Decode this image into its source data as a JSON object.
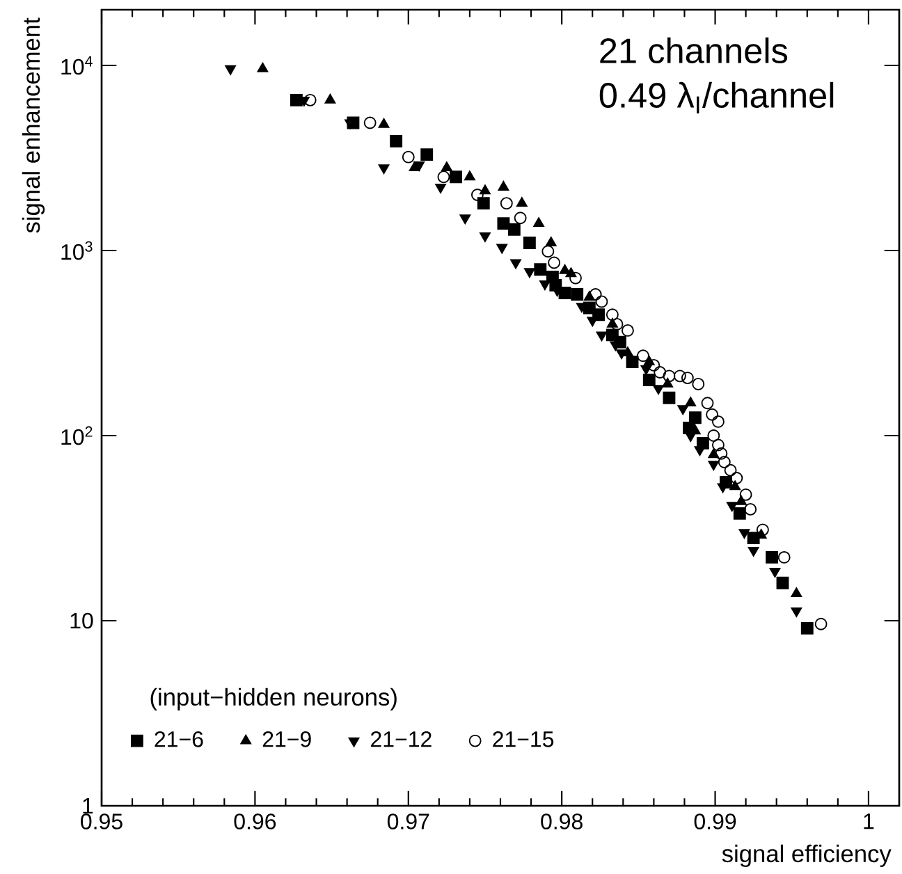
{
  "chart_data": {
    "type": "scatter",
    "xlabel": "signal efficiency",
    "ylabel": "signal enhancement",
    "legend_title": "(input−hidden neurons)",
    "legend": "bottom left",
    "log": "y",
    "annotations": [
      "21 channels",
      "0.49 λ$_{I}$/channel"
    ],
    "xlim": [
      0.95,
      1.002
    ],
    "ylim": [
      1,
      20000
    ],
    "xticks": [
      0.95,
      0.96,
      0.97,
      0.98,
      0.99,
      1
    ],
    "yticks": [
      1,
      10,
      {
        "value": 100,
        "label": "10$^{2}$"
      },
      {
        "value": 1000,
        "label": "10$^{3}$"
      },
      {
        "value": 10000,
        "label": "10$^{4}$"
      }
    ],
    "series": [
      {
        "name": "21−6",
        "color": "#000000",
        "marker": "square",
        "x": [
          0.9627,
          0.9664,
          0.9692,
          0.9712,
          0.9731,
          0.9749,
          0.9762,
          0.9769,
          0.9779,
          0.9786,
          0.9794,
          0.9796,
          0.9802,
          0.981,
          0.9818,
          0.9824,
          0.9833,
          0.9838,
          0.9846,
          0.9857,
          0.987,
          0.9883,
          0.9887,
          0.9892,
          0.9898,
          0.9907,
          0.9916,
          0.9925,
          0.9937,
          0.9944,
          0.996
        ],
        "values": [
          6500,
          4900,
          3900,
          3300,
          2500,
          1800,
          1400,
          1300,
          1100,
          790,
          720,
          650,
          590,
          580,
          490,
          450,
          350,
          320,
          250,
          200,
          160,
          110,
          125,
          91,
          null,
          56,
          38,
          28,
          22,
          16,
          9.1
        ]
      },
      {
        "name": "21−9",
        "color": "#000000",
        "marker": "triangle",
        "x": [
          0.9605,
          0.9649,
          0.9684,
          0.9704,
          0.9725,
          0.974,
          0.975,
          0.9762,
          0.9774,
          0.9785,
          0.9793,
          0.9802,
          0.9806,
          0.9818,
          0.9833,
          0.9843,
          0.9857,
          0.9869,
          0.9884,
          0.9887,
          0.9899,
          0.9913,
          0.9917,
          0.993,
          0.9953
        ],
        "values": [
          9600,
          6500,
          4800,
          2800,
          2800,
          2500,
          2100,
          2200,
          1800,
          1400,
          1100,
          780,
          750,
          560,
          400,
          280,
          250,
          190,
          150,
          106,
          79,
          53,
          44,
          29,
          14
        ]
      },
      {
        "name": "21−12",
        "color": "#000000",
        "marker": "triangle-down",
        "x": [
          0.9584,
          0.9632,
          0.9662,
          0.9684,
          0.9707,
          0.9721,
          0.9737,
          0.975,
          0.9761,
          0.977,
          0.9779,
          0.9789,
          0.9797,
          0.9813,
          0.982,
          0.9826,
          0.9835,
          0.9839,
          0.9855,
          0.9863,
          0.9879,
          0.9884,
          0.989,
          0.9899,
          0.9905,
          0.9911,
          0.9919,
          0.9925,
          0.9939,
          0.9953
        ],
        "values": [
          9600,
          6500,
          4900,
          2800,
          2900,
          2200,
          1500,
          1200,
          1040,
          860,
          770,
          660,
          610,
          500,
          420,
          350,
          310,
          280,
          230,
          180,
          140,
          100,
          84,
          70,
          53,
          42,
          30,
          24,
          18.5,
          11.3
        ]
      },
      {
        "name": "21−15",
        "color": "#000000",
        "marker": "circle",
        "x": [
          0.9636,
          0.9675,
          0.97,
          0.9723,
          0.9745,
          0.9764,
          0.9773,
          0.9791,
          0.9795,
          0.9809,
          0.9815,
          0.9822,
          0.9826,
          0.9833,
          0.9836,
          0.9843,
          0.9853,
          0.986,
          0.9864,
          0.987,
          0.9877,
          0.9882,
          0.9889,
          0.9895,
          0.9898,
          0.9902,
          0.9899,
          0.9902,
          0.9904,
          0.9906,
          0.991,
          0.9914,
          0.992,
          0.9923,
          0.9931,
          0.9945,
          0.9969
        ],
        "values": [
          6500,
          4900,
          3200,
          2500,
          2000,
          1800,
          1500,
          990,
          860,
          710,
          null,
          580,
          530,
          450,
          400,
          370,
          270,
          240,
          220,
          210,
          210,
          205,
          190,
          150,
          130,
          119,
          100,
          89,
          80,
          72,
          65,
          59,
          48,
          40,
          31,
          22,
          9.6
        ]
      }
    ]
  }
}
